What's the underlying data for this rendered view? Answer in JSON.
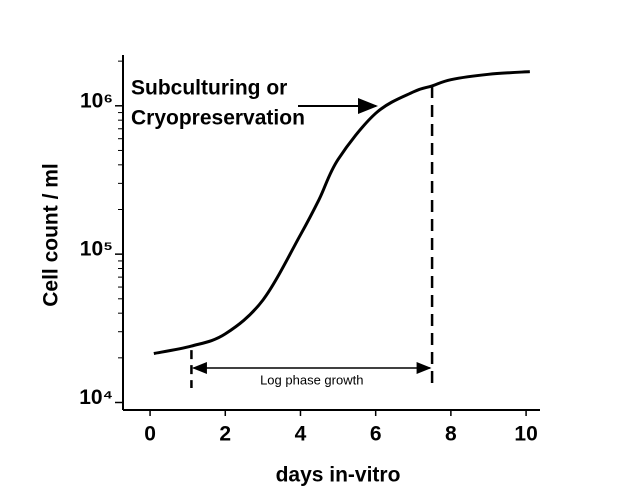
{
  "chart_data": {
    "type": "line",
    "x_label": "days in-vitro",
    "y_label": "Cell count / ml",
    "log_y": true,
    "xlim": [
      -0.72,
      10.37
    ],
    "ylim": [
      8900,
      2200000
    ],
    "xticks": [
      0,
      2,
      4,
      6,
      8,
      10
    ],
    "yticks": [
      {
        "value": 10000,
        "label": "10⁴"
      },
      {
        "value": 100000,
        "label": "10⁵"
      },
      {
        "value": 1000000,
        "label": "10⁶"
      }
    ],
    "yminorticks": [
      20000,
      30000,
      40000,
      50000,
      60000,
      70000,
      80000,
      90000,
      200000,
      300000,
      400000,
      500000,
      600000,
      700000,
      800000,
      900000,
      2000000
    ],
    "series": [
      {
        "color": "#000000",
        "x": [
          0.1,
          1.1,
          2,
          3,
          4,
          4.5,
          5,
          6,
          7,
          7.5,
          8,
          9,
          10.1
        ],
        "values": [
          21400,
          24000,
          29000,
          49000,
          135000,
          235000,
          435000,
          890000,
          1240000,
          1360000,
          1500000,
          1630000,
          1700000
        ]
      }
    ],
    "phase_bounds": [
      1.1,
      7.5
    ],
    "phase_label": "Log phase growth",
    "note_lines": [
      "Subculturing or",
      "Cryopreservation"
    ]
  }
}
